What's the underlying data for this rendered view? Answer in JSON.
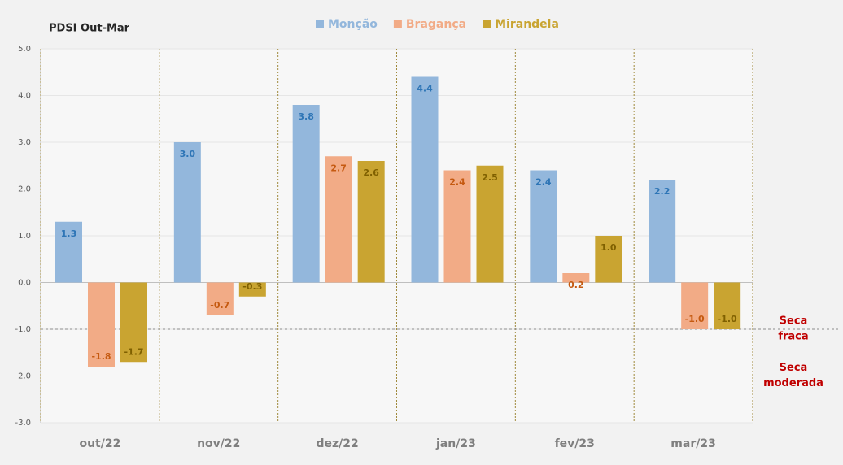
{
  "chart_data": {
    "type": "bar",
    "title": "PDSI Out-Mar",
    "categories": [
      "out/22",
      "nov/22",
      "dez/22",
      "jan/23",
      "fev/23",
      "mar/23"
    ],
    "series": [
      {
        "name": "Monção",
        "color": "#93b7dc",
        "label_color": "#2e75b6",
        "values": [
          1.3,
          3.0,
          3.8,
          4.4,
          2.4,
          2.2
        ],
        "value_labels": [
          "1.3",
          "3.0",
          "3.8",
          "4.4",
          "2.4",
          "2.2"
        ]
      },
      {
        "name": "Bragança",
        "color": "#f2ab86",
        "label_color": "#c55a11",
        "values": [
          -1.8,
          -0.7,
          2.7,
          2.4,
          0.2,
          -1.0
        ],
        "value_labels": [
          "-1.8",
          "-0.7",
          "2.7",
          "2.4",
          "0.2",
          "-1.0"
        ]
      },
      {
        "name": "Mirandela",
        "color": "#c9a431",
        "label_color": "#7f6000",
        "values": [
          -1.7,
          -0.3,
          2.6,
          2.5,
          1.0,
          -1.0
        ],
        "value_labels": [
          "-1.7",
          "-0.3",
          "2.6",
          "2.5",
          "1.0",
          "-1.0"
        ]
      }
    ],
    "ylim": [
      -3,
      5
    ],
    "yticks": [
      {
        "value": 5,
        "label": "5.0"
      },
      {
        "value": 4,
        "label": "4.0"
      },
      {
        "value": 3,
        "label": "3.0"
      },
      {
        "value": 2,
        "label": "2.0"
      },
      {
        "value": 1,
        "label": "1.0"
      },
      {
        "value": 0,
        "label": "0.0"
      },
      {
        "value": -1,
        "label": "-1.0"
      },
      {
        "value": -2,
        "label": "-2.0"
      },
      {
        "value": -3,
        "label": "-3.0"
      }
    ],
    "grid": true,
    "legend": "top",
    "annotations": [
      {
        "lines": [
          "Seca",
          "fraca"
        ],
        "y": -1,
        "color": "#c00000"
      },
      {
        "lines": [
          "Seca",
          "moderada"
        ],
        "y": -2,
        "color": "#c00000"
      }
    ]
  }
}
